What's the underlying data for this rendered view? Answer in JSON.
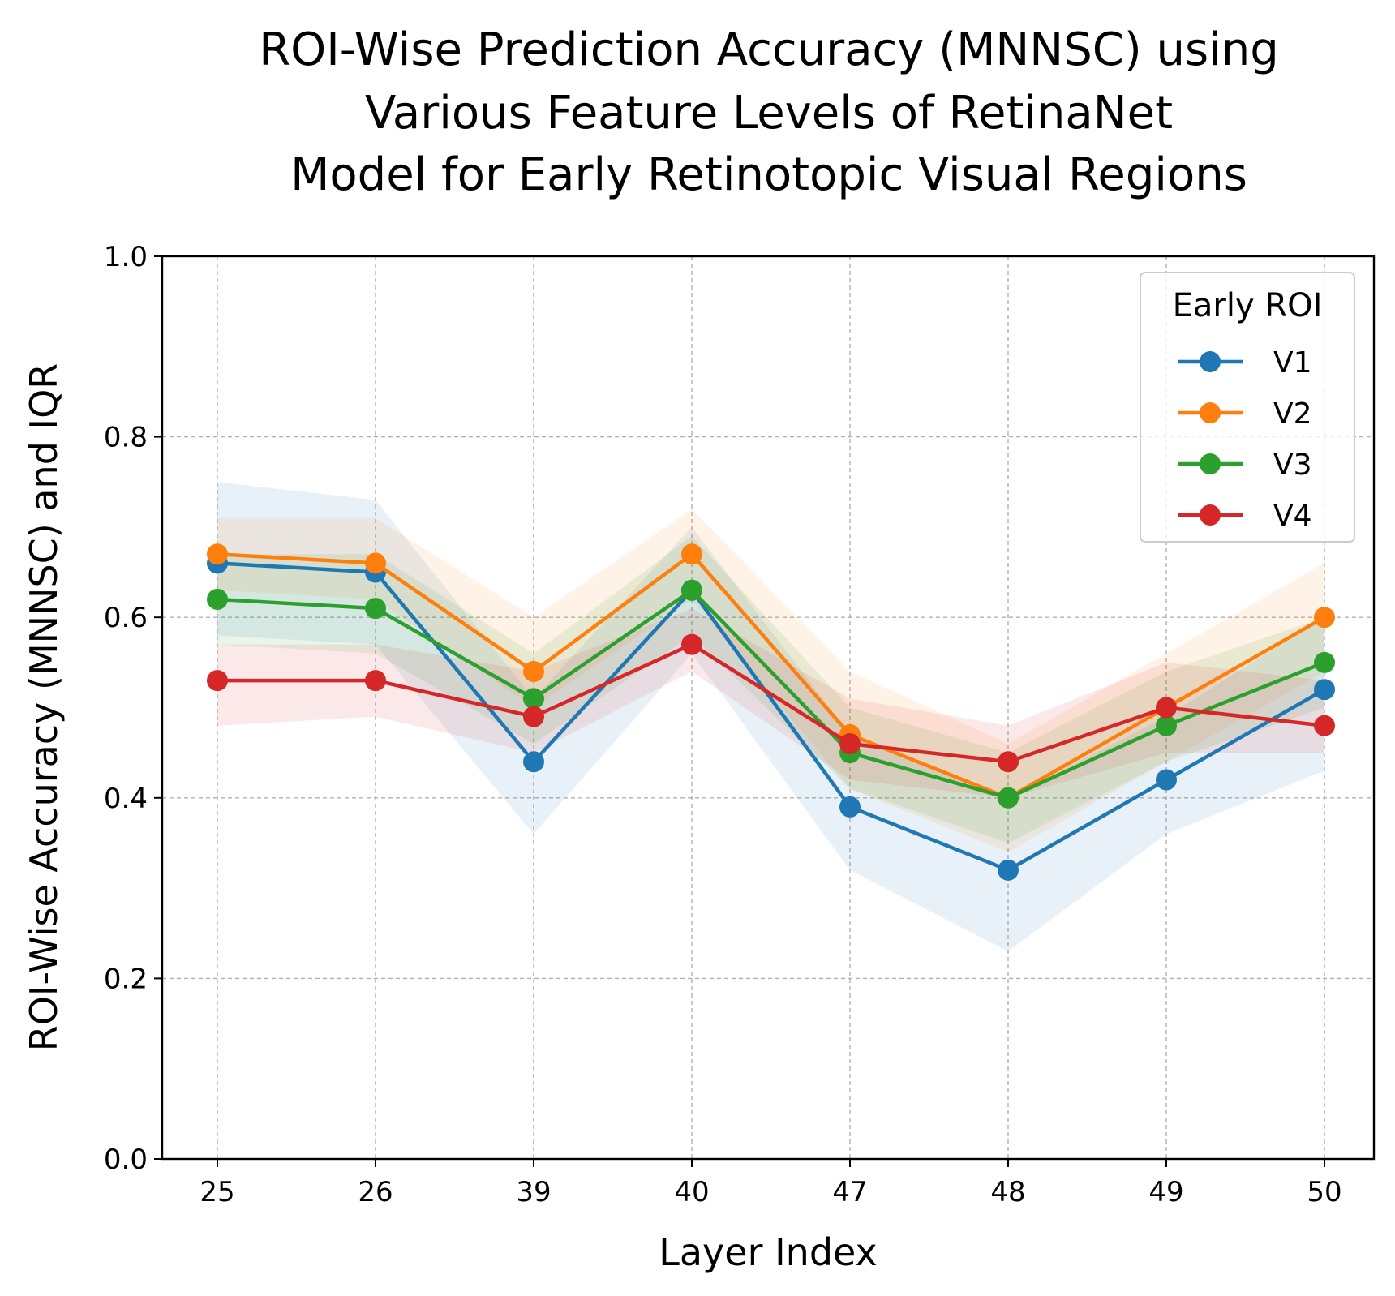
{
  "chart_data": {
    "type": "line",
    "title_lines": [
      "ROI-Wise Prediction Accuracy (MNNSC) using",
      "Various Feature Levels of RetinaNet",
      "Model for Early Retinotopic Visual Regions"
    ],
    "xlabel": "Layer Index",
    "ylabel": "ROI-Wise Accuracy (MNNSC) and IQR",
    "categories": [
      "25",
      "26",
      "39",
      "40",
      "47",
      "48",
      "49",
      "50"
    ],
    "ylim": [
      0.0,
      1.0
    ],
    "yticks": [
      "0.0",
      "0.2",
      "0.4",
      "0.6",
      "0.8",
      "1.0"
    ],
    "grid": true,
    "legend": {
      "title": "Early ROI",
      "placement": "top-right"
    },
    "series": [
      {
        "name": "V1",
        "color": "#1f77b4",
        "values": [
          0.66,
          0.65,
          0.44,
          0.63,
          0.39,
          0.32,
          0.42,
          0.52
        ],
        "iqr_low": [
          0.58,
          0.57,
          0.36,
          0.56,
          0.32,
          0.23,
          0.36,
          0.43
        ],
        "iqr_high": [
          0.75,
          0.73,
          0.51,
          0.7,
          0.47,
          0.4,
          0.49,
          0.6
        ]
      },
      {
        "name": "V2",
        "color": "#ff7f0e",
        "values": [
          0.67,
          0.66,
          0.54,
          0.67,
          0.47,
          0.4,
          0.5,
          0.6
        ],
        "iqr_low": [
          0.63,
          0.62,
          0.5,
          0.62,
          0.41,
          0.34,
          0.44,
          0.54
        ],
        "iqr_high": [
          0.71,
          0.71,
          0.6,
          0.72,
          0.54,
          0.46,
          0.56,
          0.66
        ]
      },
      {
        "name": "V3",
        "color": "#2ca02c",
        "values": [
          0.62,
          0.61,
          0.51,
          0.63,
          0.45,
          0.4,
          0.48,
          0.55
        ],
        "iqr_low": [
          0.57,
          0.56,
          0.46,
          0.58,
          0.41,
          0.35,
          0.44,
          0.5
        ],
        "iqr_high": [
          0.67,
          0.67,
          0.56,
          0.69,
          0.5,
          0.45,
          0.54,
          0.6
        ]
      },
      {
        "name": "V4",
        "color": "#d62728",
        "values": [
          0.53,
          0.53,
          0.49,
          0.57,
          0.46,
          0.44,
          0.5,
          0.48
        ],
        "iqr_low": [
          0.48,
          0.49,
          0.45,
          0.54,
          0.42,
          0.4,
          0.45,
          0.45
        ],
        "iqr_high": [
          0.57,
          0.57,
          0.54,
          0.61,
          0.51,
          0.48,
          0.55,
          0.53
        ]
      }
    ]
  }
}
